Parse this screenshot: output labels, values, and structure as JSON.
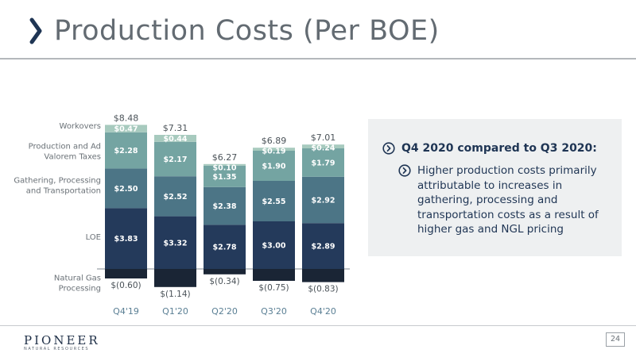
{
  "header": {
    "title": "Production Costs (Per BOE)"
  },
  "chart_data": {
    "type": "bar",
    "stacked": true,
    "categories": [
      "Q4'19",
      "Q1'20",
      "Q2'20",
      "Q3'20",
      "Q4'20"
    ],
    "series": [
      {
        "name": "Natural Gas Processing",
        "values": [
          -0.6,
          -1.14,
          -0.34,
          -0.75,
          -0.83
        ],
        "labels": [
          "$(0.60)",
          "$(1.14)",
          "$(0.34)",
          "$(0.75)",
          "$(0.83)"
        ],
        "color": "#1a2535"
      },
      {
        "name": "LOE",
        "values": [
          3.83,
          3.32,
          2.78,
          3.0,
          2.89
        ],
        "labels": [
          "$3.83",
          "$3.32",
          "$2.78",
          "$3.00",
          "$2.89"
        ],
        "color": "#243a5b"
      },
      {
        "name": "Gathering, Processing and Transportation",
        "values": [
          2.5,
          2.52,
          2.38,
          2.55,
          2.92
        ],
        "labels": [
          "$2.50",
          "$2.52",
          "$2.38",
          "$2.55",
          "$2.92"
        ],
        "color": "#4c7586"
      },
      {
        "name": "Production and Ad Valorem Taxes",
        "values": [
          2.28,
          2.17,
          1.35,
          1.9,
          1.79
        ],
        "labels": [
          "$2.28",
          "$2.17",
          "$1.35",
          "$1.90",
          "$1.79"
        ],
        "color": "#74a4a2"
      },
      {
        "name": "Workovers",
        "values": [
          0.47,
          0.44,
          0.1,
          0.19,
          0.24
        ],
        "labels": [
          "$0.47",
          "$0.44",
          "$0.10",
          "$0.19",
          "$0.24"
        ],
        "color": "#a7cabe"
      }
    ],
    "totals": [
      "$8.48",
      "$7.31",
      "$6.27",
      "$6.89",
      "$7.01"
    ],
    "legend_labels": {
      "workovers": [
        "Workovers"
      ],
      "taxes": [
        "Production and  Ad",
        "Valorem Taxes"
      ],
      "gathering": [
        "Gathering, Processing",
        "and Transportation"
      ],
      "loe": [
        "LOE"
      ],
      "ngp": [
        "Natural Gas",
        "Processing"
      ]
    },
    "legend_placement": "left",
    "grid": false
  },
  "panel": {
    "heading": "Q4 2020 compared to Q3 2020:",
    "bullet": "Higher production costs primarily attributable to increases in gathering, processing and transportation costs as a result of higher gas and NGL pricing"
  },
  "footer": {
    "logo_main": "PIONEER",
    "logo_sub": "NATURAL RESOURCES",
    "page_number": "24"
  },
  "colors": {
    "title": "#636b72",
    "accent": "#1f3554",
    "panel_bg": "#eef0f1"
  }
}
